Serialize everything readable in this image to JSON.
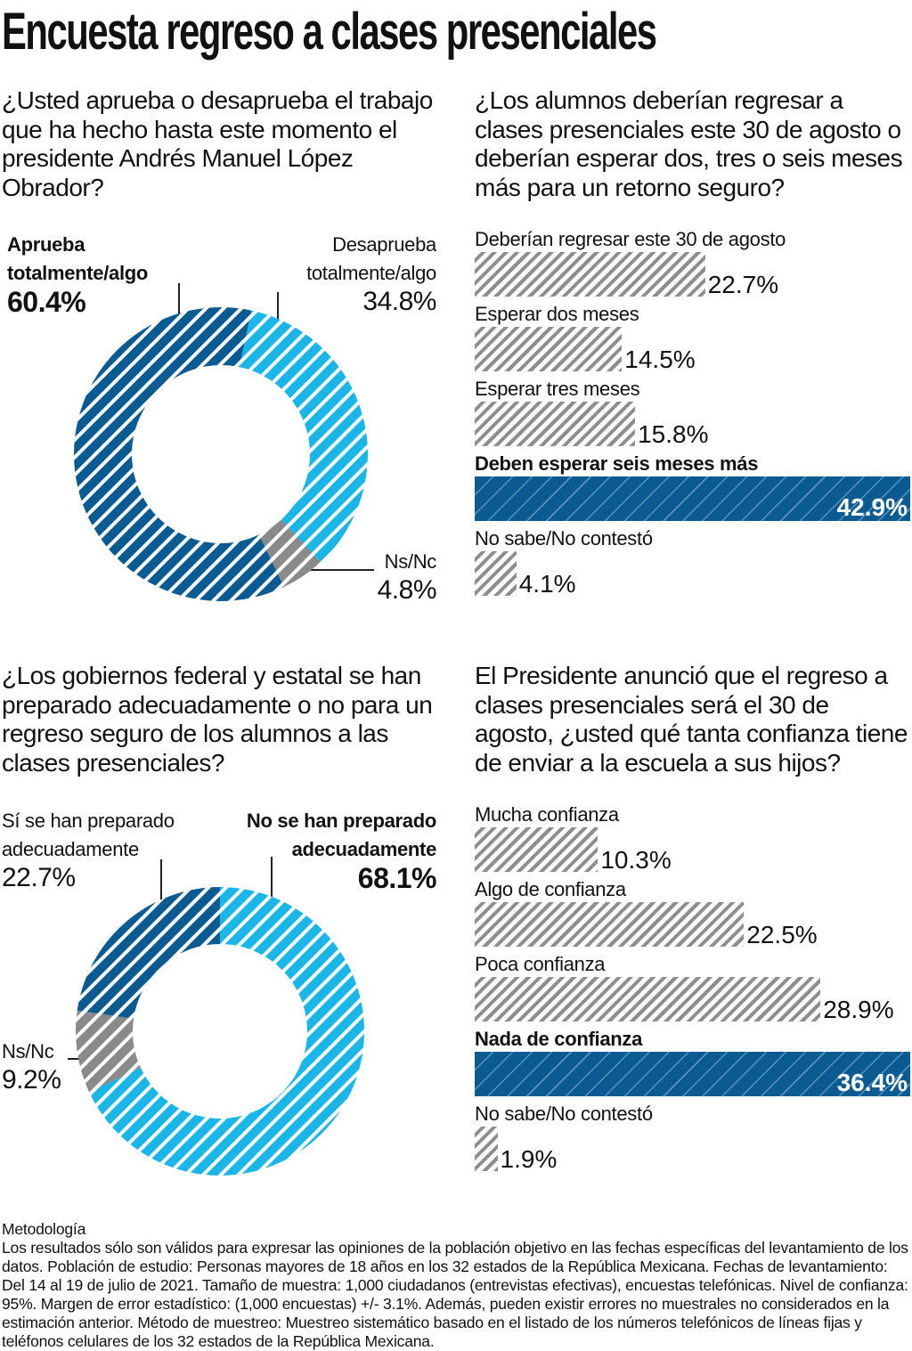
{
  "title": "Encuesta regreso a clases presenciales",
  "colors": {
    "approve": "#0b5b93",
    "disapprove": "#1bb6e8",
    "ns": "#8a8a8a",
    "bar_hatch": "#8e8e8e",
    "bar_highlight": "#0b5b93"
  },
  "chart_data": [
    {
      "type": "pie",
      "donut": true,
      "title": "¿Usted aprueba o desaprueba el trabajo que ha hecho hasta este momento el presidente Andrés Manuel López Obrador?",
      "slices": [
        {
          "label": "Desaprueba totalmente/algo",
          "value": 34.8,
          "display": "34.8%",
          "color": "#1bb6e8"
        },
        {
          "label": "Ns/Nc",
          "value": 4.8,
          "display": "4.8%",
          "color": "#8a8a8a"
        },
        {
          "label": "Aprueba totalmente/algo",
          "value": 60.4,
          "display": "60.4%",
          "color": "#0b5b93"
        }
      ]
    },
    {
      "type": "bar",
      "orientation": "horizontal",
      "title": "¿Los alumnos deberían regresar a clases presenciales este 30 de agosto o deberían esperar dos, tres o seis meses más para un retorno seguro?",
      "categories": [
        "Deberían regresar este 30 de agosto",
        "Esperar dos meses",
        "Esperar tres meses",
        "Deben esperar seis meses más",
        "No sabe/No contestó"
      ],
      "values": [
        22.7,
        14.5,
        15.8,
        42.9,
        4.1
      ],
      "display": [
        "22.7%",
        "14.5%",
        "15.8%",
        "42.9%",
        "4.1%"
      ],
      "highlight": 3
    },
    {
      "type": "pie",
      "donut": true,
      "title": "¿Los gobiernos federal y estatal se han preparado adecuadamente o no para un regreso seguro de los alumnos a las clases presenciales?",
      "slices": [
        {
          "label": "No se han preparado adecuadamente",
          "value": 68.1,
          "display": "68.1%",
          "color": "#1bb6e8"
        },
        {
          "label": "Ns/Nc",
          "value": 9.2,
          "display": "9.2%",
          "color": "#8a8a8a"
        },
        {
          "label": "Sí se han preparado adecuadamente",
          "value": 22.7,
          "display": "22.7%",
          "color": "#0b5b93"
        }
      ]
    },
    {
      "type": "bar",
      "orientation": "horizontal",
      "title": "El Presidente anunció que el regreso a clases presenciales será el 30 de agosto, ¿usted qué tanta confianza tiene de enviar a la escuela a sus hijos?",
      "categories": [
        "Mucha confianza",
        "Algo de confianza",
        "Poca confianza",
        "Nada de confianza",
        "No sabe/No contestó"
      ],
      "values": [
        10.3,
        22.5,
        28.9,
        36.4,
        1.9
      ],
      "display": [
        "10.3%",
        "22.5%",
        "28.9%",
        "36.4%",
        "1.9%"
      ],
      "highlight": 3
    }
  ],
  "donut1_labels": {
    "approve_1": "Aprueba",
    "approve_2": "totalmente/algo",
    "disapprove_1": "Desaprueba",
    "disapprove_2": "totalmente/algo",
    "ns": "Ns/Nc"
  },
  "donut2_labels": {
    "yes_1": "Sí se han preparado",
    "yes_2": "adecuadamente",
    "no_1": "No se han preparado",
    "no_2": "adecuadamente",
    "ns": "Ns/Nc"
  },
  "methodology": {
    "heading": "Metodología",
    "text": "Los resultados sólo son válidos para expresar las opiniones de la población objetivo en las fechas específicas del levantamiento de los datos. Población de estudio: Personas mayores de 18 años en los 32 estados de la República Mexicana. Fechas de levantamiento: Del 14 al 19 de julio de 2021. Tamaño de muestra: 1,000 ciudadanos (entrevistas efectivas), encuestas telefónicas. Nivel de confianza: 95%. Margen de error estadístico: (1,000 encuestas) +/- 3.1%. Además, pueden existir errores no muestrales no considerados en la estimación anterior. Método de muestreo: Muestreo sistemático basado en el listado de los números telefónicos de líneas fijas y teléfonos celulares de los 32 estados de la República Mexicana."
  }
}
